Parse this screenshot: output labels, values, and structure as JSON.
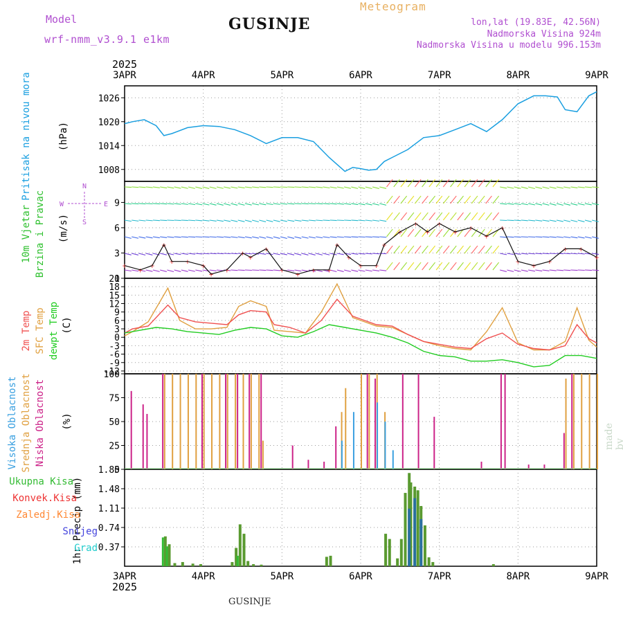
{
  "header": {
    "model_label": "Model",
    "model_name": "wrf-nmm_v3.9.1 e1km",
    "station": "GUSINJE",
    "title": "Meteogram",
    "coords": "lon,lat (19.83E, 42.56N)",
    "elevation": "Nadmorska Visina 924m",
    "model_elevation": "Nadmorska Visina u modelu 996.153m"
  },
  "year_label": "2025",
  "footer": {
    "station": "GUSINJE",
    "credit": "made by Angel"
  },
  "colors": {
    "pressure": "#1a9fe0",
    "wind_label": "#2ec02e",
    "temp2m": "#f05050",
    "sfc": "#e0a040",
    "dewpt": "#22cc22",
    "high_cloud": "#3aa0e0",
    "mid_cloud": "#e0a040",
    "low_cloud": "#cc2288",
    "total_precip": "#33bb33",
    "conv_precip": "#ee3333",
    "frozen_precip": "#ff8833",
    "snow": "#4444dd",
    "graupel": "#22cccc",
    "purple": "#b04fd0"
  },
  "chart_data": [
    {
      "type": "line",
      "panel": "pressure",
      "ylabel_lines": [
        "Pritisak na nivou mora",
        "(hPa)"
      ],
      "x_ticks": [
        "3APR",
        "4APR",
        "5APR",
        "6APR",
        "7APR",
        "8APR",
        "9APR"
      ],
      "ylim": [
        1005,
        1029
      ],
      "y_ticks": [
        1008,
        1014,
        1020,
        1026
      ],
      "grid": true,
      "series": [
        {
          "x": [
            0,
            0.1,
            0.25,
            0.4,
            0.5,
            0.6,
            0.8,
            1.0,
            1.2,
            1.4,
            1.6,
            1.8,
            2.0,
            2.2,
            2.4,
            2.6,
            2.8,
            2.9,
            3.0,
            3.1,
            3.2,
            3.3,
            3.4,
            3.6,
            3.8,
            4.0,
            4.2,
            4.4,
            4.6,
            4.8,
            5.0,
            5.2,
            5.35,
            5.5,
            5.6,
            5.75,
            5.9,
            6.0
          ],
          "y": [
            1019.5,
            1020,
            1020.5,
            1019,
            1016.5,
            1017,
            1018.5,
            1019,
            1018.8,
            1018,
            1016.5,
            1014.5,
            1016,
            1016,
            1015,
            1011,
            1007.5,
            1008.5,
            1008.2,
            1007.8,
            1008,
            1010,
            1011,
            1013,
            1016,
            1016.5,
            1018,
            1019.5,
            1017.5,
            1020.5,
            1024.5,
            1026.5,
            1026.5,
            1026.2,
            1023,
            1022.5,
            1026.5,
            1027.5
          ]
        }
      ]
    },
    {
      "type": "line",
      "panel": "wind",
      "ylabel_lines": [
        "10m Vjetar",
        "Brzina i Pravac",
        "(m/s)"
      ],
      "compass": [
        "N",
        "W",
        "E",
        "S"
      ],
      "ylim": [
        0,
        11.5
      ],
      "y_ticks": [
        0,
        3,
        6,
        9
      ],
      "grid": true,
      "series": [
        {
          "name": "speed",
          "x": [
            0,
            0.2,
            0.35,
            0.5,
            0.6,
            0.8,
            1.0,
            1.1,
            1.3,
            1.5,
            1.6,
            1.8,
            2.0,
            2.2,
            2.4,
            2.6,
            2.7,
            2.85,
            3.0,
            3.2,
            3.3,
            3.5,
            3.7,
            3.85,
            4.0,
            4.2,
            4.4,
            4.6,
            4.8,
            5.0,
            5.2,
            5.4,
            5.6,
            5.8,
            6.0
          ],
          "y": [
            1.5,
            1,
            1.5,
            4,
            2,
            2,
            1.5,
            0.5,
            1,
            3,
            2.5,
            3.5,
            1,
            0.5,
            1,
            1,
            4,
            2.5,
            1.5,
            1.5,
            4,
            5.5,
            6.5,
            5.5,
            6.5,
            5.5,
            6,
            5,
            6,
            2,
            1.5,
            2,
            3.5,
            3.5,
            2.5
          ]
        }
      ]
    },
    {
      "type": "line",
      "panel": "temperature",
      "ylabel_lines": [
        "2m Temp",
        "SFC Temp",
        "dewpt Temp",
        "(C)"
      ],
      "ylim": [
        -13,
        21
      ],
      "y_ticks": [
        -12,
        -9,
        -6,
        -3,
        0,
        3,
        6,
        9,
        12,
        15,
        18,
        21
      ],
      "grid": true,
      "series": [
        {
          "name": "2m Temp",
          "x": [
            0,
            0.1,
            0.3,
            0.55,
            0.7,
            0.9,
            1.1,
            1.3,
            1.45,
            1.6,
            1.8,
            1.9,
            2.1,
            2.3,
            2.5,
            2.7,
            2.9,
            3.0,
            3.2,
            3.4,
            3.6,
            3.8,
            4.0,
            4.2,
            4.4,
            4.6,
            4.8,
            5.0,
            5.2,
            5.4,
            5.6,
            5.75,
            5.9,
            6.0
          ],
          "y": [
            1.5,
            3,
            4,
            11.5,
            7,
            5.5,
            5,
            4.5,
            8,
            9.5,
            9,
            4.5,
            3.5,
            1.5,
            6,
            13.5,
            7.5,
            6.5,
            4.5,
            4,
            1,
            -1.5,
            -2.5,
            -3.5,
            -4,
            -0.5,
            1.5,
            -2.5,
            -4,
            -4.5,
            -3,
            4.5,
            -0.5,
            -2
          ]
        },
        {
          "name": "SFC Temp",
          "x": [
            0,
            0.1,
            0.3,
            0.55,
            0.7,
            0.9,
            1.1,
            1.3,
            1.45,
            1.6,
            1.8,
            1.9,
            2.1,
            2.3,
            2.5,
            2.7,
            2.9,
            3.0,
            3.2,
            3.4,
            3.6,
            3.8,
            4.0,
            4.2,
            4.4,
            4.6,
            4.8,
            5.0,
            5.2,
            5.4,
            5.6,
            5.75,
            5.9,
            6.0
          ],
          "y": [
            0.5,
            2,
            5.5,
            17.5,
            6,
            3,
            3,
            3.5,
            11,
            13,
            11,
            2.5,
            2,
            1.5,
            9,
            19,
            7,
            6,
            4,
            3.5,
            1,
            -1.5,
            -3,
            -4,
            -4.5,
            2,
            10.5,
            -2,
            -4.5,
            -4.5,
            -1.5,
            10.5,
            -1,
            -3.5
          ]
        },
        {
          "name": "dewpt Temp",
          "x": [
            0,
            0.2,
            0.4,
            0.6,
            0.8,
            1.0,
            1.2,
            1.4,
            1.6,
            1.8,
            2.0,
            2.2,
            2.4,
            2.6,
            2.8,
            3.0,
            3.2,
            3.4,
            3.6,
            3.8,
            4.0,
            4.2,
            4.4,
            4.6,
            4.8,
            5.0,
            5.2,
            5.4,
            5.6,
            5.8,
            6.0
          ],
          "y": [
            1.5,
            2.5,
            3.5,
            3,
            2,
            1.5,
            1,
            2.5,
            3.5,
            3,
            0.5,
            0,
            2,
            4.5,
            3.5,
            2.5,
            1.5,
            0,
            -2,
            -5,
            -6.5,
            -7,
            -8.5,
            -8.5,
            -8,
            -9,
            -10.5,
            -10,
            -6.5,
            -6.5,
            -7.5
          ]
        }
      ]
    },
    {
      "type": "bar",
      "panel": "cloud",
      "ylabel_lines": [
        "Visoka Oblacnost",
        "Srednja Oblacnost",
        "Niska Oblacnost",
        "(%)"
      ],
      "ylim": [
        0,
        100
      ],
      "y_ticks": [
        0,
        25,
        50,
        75,
        100
      ],
      "grid": true,
      "series": [
        {
          "name": "Srednja Oblacnost",
          "x": [
            0.5,
            0.6,
            0.7,
            0.8,
            0.9,
            1.0,
            1.1,
            1.2,
            1.3,
            1.4,
            1.5,
            1.6,
            1.7,
            1.75,
            2.75,
            2.8,
            3.0,
            3.1,
            3.2,
            3.3,
            5.6,
            5.7,
            5.8,
            5.9,
            6.0
          ],
          "values": [
            100,
            100,
            100,
            100,
            100,
            100,
            100,
            100,
            100,
            100,
            100,
            100,
            100,
            30,
            60,
            85,
            100,
            100,
            100,
            60,
            95,
            100,
            100,
            100,
            100
          ]
        },
        {
          "name": "Niska Oblacnost",
          "x": [
            0.05,
            0.2,
            0.25,
            0.45,
            0.95,
            1.25,
            1.4,
            1.55,
            1.7,
            2.1,
            2.3,
            2.5,
            2.65,
            3.05,
            3.15,
            3.5,
            3.7,
            3.9,
            4.5,
            4.75,
            4.8,
            5.1,
            5.3,
            5.55,
            5.65
          ],
          "values": [
            82,
            68,
            58,
            100,
            100,
            100,
            100,
            100,
            100,
            25,
            10,
            8,
            45,
            100,
            95,
            100,
            100,
            55,
            8,
            100,
            100,
            5,
            5,
            38,
            100
          ]
        },
        {
          "name": "Visoka Oblacnost",
          "x": [
            2.7,
            2.85,
            3.15,
            3.25,
            3.35
          ],
          "values": [
            30,
            60,
            70,
            50,
            20
          ]
        }
      ]
    },
    {
      "type": "bar",
      "panel": "precipitation",
      "legend": [
        "Ukupna Kisa",
        "Konvek.Kisa",
        "Zaledj.Kisa",
        "Snijeg",
        "Grad"
      ],
      "ylabel_lines": [
        "1hr Precip (mm)"
      ],
      "x_ticks": [
        "3APR",
        "4APR",
        "5APR",
        "6APR",
        "7APR",
        "8APR",
        "9APR"
      ],
      "ylim": [
        0,
        1.85
      ],
      "y_ticks": [
        0.37,
        0.74,
        1.11,
        1.48,
        1.85
      ],
      "grid": true,
      "series": [
        {
          "name": "Ukupna Kisa",
          "x": [
            0.5,
            0.55,
            0.62,
            0.72,
            0.85,
            0.95,
            1.35,
            1.4,
            1.45,
            1.5,
            1.55,
            1.62,
            1.72,
            2.55,
            2.6,
            3.3,
            3.35,
            3.45,
            3.5,
            3.55,
            3.6,
            3.62,
            3.67,
            3.71,
            3.75,
            3.8,
            3.85,
            3.9,
            4.67
          ],
          "values": [
            0.57,
            0.42,
            0.06,
            0.08,
            0.05,
            0.04,
            0.08,
            0.35,
            0.8,
            0.62,
            0.1,
            0.04,
            0.03,
            0.18,
            0.2,
            0.62,
            0.52,
            0.15,
            0.52,
            1.4,
            1.78,
            1.6,
            1.52,
            1.45,
            1.15,
            0.78,
            0.17,
            0.08,
            0.04
          ]
        },
        {
          "name": "Konvek.Kisa",
          "x": [
            0.5,
            0.55,
            1.45
          ],
          "values": [
            0.55,
            0.38,
            0.2
          ]
        },
        {
          "name": "Snijeg",
          "x": [
            3.6,
            3.67,
            3.75
          ],
          "values": [
            1.1,
            1.3,
            0.9
          ]
        }
      ]
    }
  ]
}
